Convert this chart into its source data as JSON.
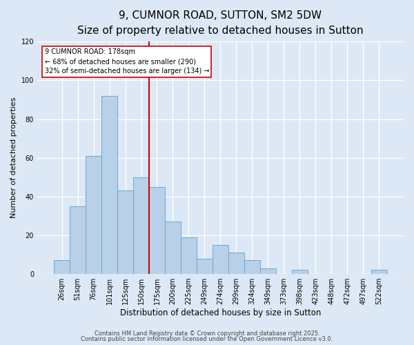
{
  "title": "9, CUMNOR ROAD, SUTTON, SM2 5DW",
  "subtitle": "Size of property relative to detached houses in Sutton",
  "xlabel": "Distribution of detached houses by size in Sutton",
  "ylabel": "Number of detached properties",
  "bar_labels": [
    "26sqm",
    "51sqm",
    "76sqm",
    "101sqm",
    "125sqm",
    "150sqm",
    "175sqm",
    "200sqm",
    "225sqm",
    "249sqm",
    "274sqm",
    "299sqm",
    "324sqm",
    "349sqm",
    "373sqm",
    "398sqm",
    "423sqm",
    "448sqm",
    "472sqm",
    "497sqm",
    "522sqm"
  ],
  "bar_values": [
    7,
    35,
    61,
    92,
    43,
    50,
    45,
    27,
    19,
    8,
    15,
    11,
    7,
    3,
    0,
    2,
    0,
    0,
    0,
    0,
    2
  ],
  "bar_color": "#b8d0e8",
  "bar_edge_color": "#6aaad4",
  "marker_line_color": "#cc0000",
  "annotation_line1": "9 CUMNOR ROAD: 178sqm",
  "annotation_line2": "← 68% of detached houses are smaller (290)",
  "annotation_line3": "32% of semi-detached houses are larger (134) →",
  "annotation_box_color": "#ffffff",
  "annotation_box_edge": "#cc0000",
  "ylim": [
    0,
    120
  ],
  "yticks": [
    0,
    20,
    40,
    60,
    80,
    100,
    120
  ],
  "background_color": "#dce8f5",
  "grid_color": "#ffffff",
  "footer1": "Contains HM Land Registry data © Crown copyright and database right 2025.",
  "footer2": "Contains public sector information licensed under the Open Government Licence v3.0.",
  "title_fontsize": 11,
  "subtitle_fontsize": 9,
  "xlabel_fontsize": 8.5,
  "ylabel_fontsize": 8,
  "tick_fontsize": 7,
  "footer_fontsize": 6,
  "marker_bar_index": 6
}
